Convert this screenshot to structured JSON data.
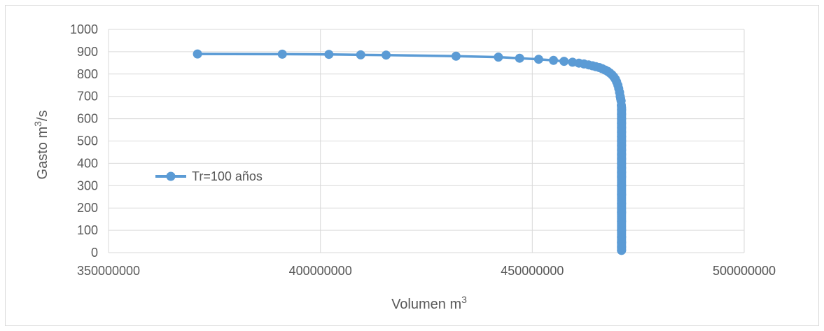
{
  "chart_data": {
    "type": "scatter",
    "xlabel": "Volumen m",
    "xlabel_sup": "3",
    "ylabel_main": "Gasto m",
    "ylabel_sup": "3",
    "ylabel_tail": "/s",
    "xlim": [
      350000000,
      500000000
    ],
    "ylim": [
      0,
      1000
    ],
    "x_ticks": [
      350000000,
      400000000,
      450000000,
      500000000
    ],
    "y_ticks": [
      0,
      100,
      200,
      300,
      400,
      500,
      600,
      700,
      800,
      900,
      1000
    ],
    "grid": true,
    "legend_position": "left-middle",
    "series_color": "#5b9bd5",
    "series": [
      {
        "name": "Tr=100 años",
        "x": [
          371000000,
          391000000,
          402000000,
          409500000,
          415500000,
          432000000,
          442000000,
          447000000,
          451500000,
          455000000,
          457500000,
          459500000,
          461000000,
          462200000,
          463300000,
          464200000,
          465000000,
          465800000,
          466500000,
          467200000,
          467800000,
          468300000,
          468800000,
          469200000,
          469600000,
          469900000,
          470200000,
          470400000,
          470600000,
          470750000,
          470850000,
          470950000,
          471000000,
          471050000,
          471050000,
          471050000,
          471050000,
          471050000,
          471050000,
          471050000,
          471050000,
          471050000,
          471050000,
          471050000,
          471050000,
          471050000,
          471050000,
          471050000,
          471050000,
          471050000,
          471050000,
          471050000,
          471050000,
          471050000,
          471050000,
          471050000,
          471050000,
          471050000,
          471050000
        ],
        "y": [
          890,
          889,
          888,
          886,
          885,
          880,
          876,
          871,
          866,
          861,
          857,
          853,
          849,
          845,
          841,
          837,
          833,
          829,
          824,
          818,
          812,
          805,
          797,
          788,
          777,
          765,
          750,
          735,
          718,
          700,
          690,
          680,
          660,
          640,
          620,
          600,
          580,
          560,
          540,
          520,
          500,
          480,
          460,
          440,
          420,
          400,
          380,
          360,
          340,
          300,
          260,
          220,
          180,
          140,
          100,
          70,
          45,
          25,
          10
        ]
      }
    ]
  }
}
